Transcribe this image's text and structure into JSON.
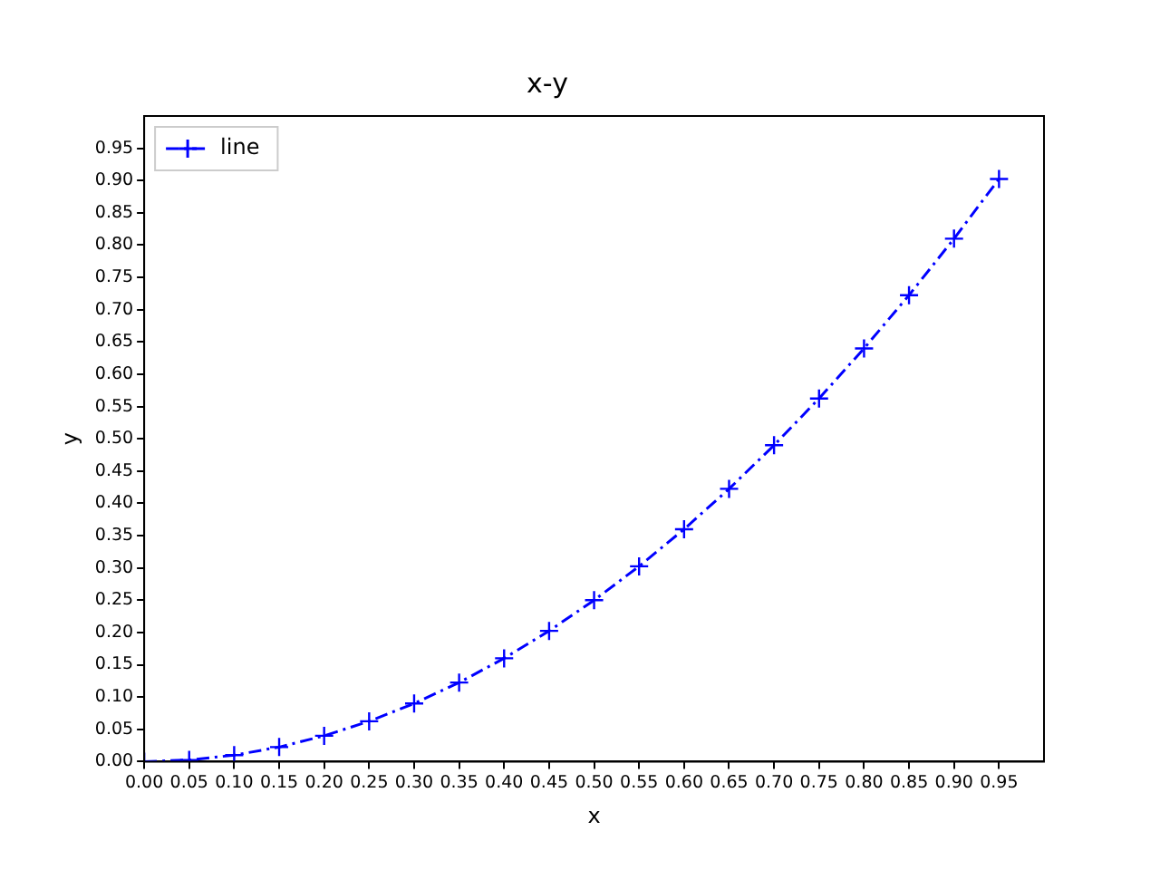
{
  "chart_data": {
    "type": "line",
    "title": "x-y",
    "xlabel": "x",
    "ylabel": "y",
    "x": [
      0,
      0.05,
      0.1,
      0.15,
      0.2,
      0.25,
      0.3,
      0.35,
      0.4,
      0.45,
      0.5,
      0.55,
      0.6,
      0.65,
      0.7,
      0.75,
      0.8,
      0.85,
      0.9,
      0.95
    ],
    "series": [
      {
        "name": "line",
        "color": "#0000ff",
        "values": [
          0,
          0.0025,
          0.01,
          0.0225,
          0.04,
          0.0625,
          0.09,
          0.1225,
          0.16,
          0.2025,
          0.25,
          0.3025,
          0.36,
          0.4225,
          0.49,
          0.5625,
          0.64,
          0.7225,
          0.81,
          0.9025
        ]
      }
    ],
    "xlim": [
      0,
      1
    ],
    "ylim": [
      0,
      1
    ],
    "xticks": [
      {
        "value": 0,
        "label": "0.00"
      },
      {
        "value": 0.05,
        "label": "0.05"
      },
      {
        "value": 0.1,
        "label": "0.10"
      },
      {
        "value": 0.15,
        "label": "0.15"
      },
      {
        "value": 0.2,
        "label": "0.20"
      },
      {
        "value": 0.25,
        "label": "0.25"
      },
      {
        "value": 0.3,
        "label": "0.30"
      },
      {
        "value": 0.35,
        "label": "0.35"
      },
      {
        "value": 0.4,
        "label": "0.40"
      },
      {
        "value": 0.45,
        "label": "0.45"
      },
      {
        "value": 0.5,
        "label": "0.50"
      },
      {
        "value": 0.55,
        "label": "0.55"
      },
      {
        "value": 0.6,
        "label": "0.60"
      },
      {
        "value": 0.65,
        "label": "0.65"
      },
      {
        "value": 0.7,
        "label": "0.70"
      },
      {
        "value": 0.75,
        "label": "0.75"
      },
      {
        "value": 0.8,
        "label": "0.80"
      },
      {
        "value": 0.85,
        "label": "0.85"
      },
      {
        "value": 0.9,
        "label": "0.90"
      },
      {
        "value": 0.95,
        "label": "0.95"
      }
    ],
    "yticks": [
      {
        "value": 0,
        "label": "0.00"
      },
      {
        "value": 0.05,
        "label": "0.05"
      },
      {
        "value": 0.1,
        "label": "0.10"
      },
      {
        "value": 0.15,
        "label": "0.15"
      },
      {
        "value": 0.2,
        "label": "0.20"
      },
      {
        "value": 0.25,
        "label": "0.25"
      },
      {
        "value": 0.3,
        "label": "0.30"
      },
      {
        "value": 0.35,
        "label": "0.35"
      },
      {
        "value": 0.4,
        "label": "0.40"
      },
      {
        "value": 0.45,
        "label": "0.45"
      },
      {
        "value": 0.5,
        "label": "0.50"
      },
      {
        "value": 0.55,
        "label": "0.55"
      },
      {
        "value": 0.6,
        "label": "0.60"
      },
      {
        "value": 0.65,
        "label": "0.65"
      },
      {
        "value": 0.7,
        "label": "0.70"
      },
      {
        "value": 0.75,
        "label": "0.75"
      },
      {
        "value": 0.8,
        "label": "0.80"
      },
      {
        "value": 0.85,
        "label": "0.85"
      },
      {
        "value": 0.9,
        "label": "0.90"
      },
      {
        "value": 0.95,
        "label": "0.95"
      }
    ],
    "grid": false,
    "legend": "top left",
    "marker": "cross",
    "line_style": "dashed"
  }
}
